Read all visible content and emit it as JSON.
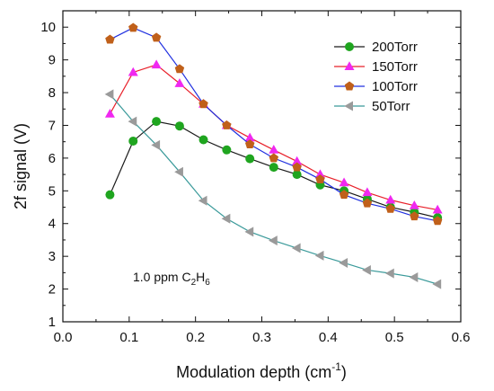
{
  "chart_data": {
    "type": "line",
    "xlabel": "Modulation depth (cm",
    "xlabel_sup": "-1",
    "xlabel_close": ")",
    "ylabel": "2f signal (V)",
    "xlim": [
      0.0,
      0.6
    ],
    "ylim": [
      1,
      10.5
    ],
    "xticks": [
      "0.0",
      "0.1",
      "0.2",
      "0.3",
      "0.4",
      "0.5",
      "0.6"
    ],
    "yticks": [
      "1",
      "2",
      "3",
      "4",
      "5",
      "6",
      "7",
      "8",
      "9",
      "10"
    ],
    "x": [
      0.071,
      0.106,
      0.141,
      0.176,
      0.212,
      0.247,
      0.282,
      0.318,
      0.353,
      0.388,
      0.424,
      0.459,
      0.494,
      0.53,
      0.565
    ],
    "legend_position": "top-right",
    "grid": false,
    "series": [
      {
        "name": "200Torr",
        "color": "#1a1a1a",
        "marker_color": "#1fa51f",
        "marker": "circle",
        "values": [
          4.88,
          6.52,
          7.12,
          6.98,
          6.56,
          6.25,
          5.98,
          5.72,
          5.5,
          5.18,
          5.0,
          4.75,
          4.5,
          4.35,
          4.18
        ]
      },
      {
        "name": "150Torr",
        "color": "#e8202a",
        "marker_color": "#f028f0",
        "marker": "triangle-up",
        "values": [
          7.35,
          8.62,
          8.85,
          8.28,
          7.65,
          7.0,
          6.62,
          6.25,
          5.9,
          5.5,
          5.25,
          4.95,
          4.72,
          4.55,
          4.42
        ]
      },
      {
        "name": "100Torr",
        "color": "#2030e0",
        "marker_color": "#c0601a",
        "marker": "pentagon",
        "values": [
          9.62,
          9.98,
          9.68,
          8.72,
          7.65,
          7.0,
          6.42,
          6.0,
          5.72,
          5.35,
          4.88,
          4.62,
          4.45,
          4.22,
          4.08
        ]
      },
      {
        "name": "50Torr",
        "color": "#3a9a9a",
        "marker_color": "#9a9a9a",
        "marker": "triangle-left",
        "values": [
          7.95,
          7.12,
          6.4,
          5.58,
          4.7,
          4.15,
          3.75,
          3.48,
          3.25,
          3.02,
          2.8,
          2.58,
          2.48,
          2.36,
          2.15
        ]
      }
    ],
    "annotation": {
      "text": "1.0 ppm C",
      "sub1": "2",
      "mid": "H",
      "sub2": "6"
    }
  }
}
